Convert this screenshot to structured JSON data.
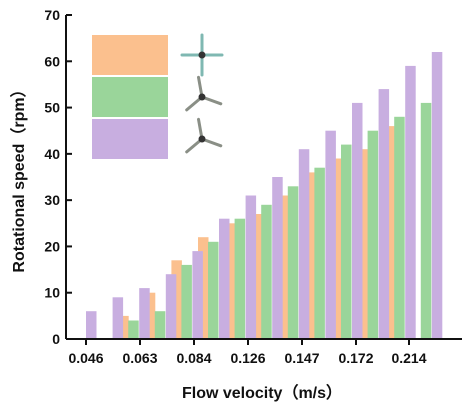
{
  "chart_data": {
    "type": "bar",
    "title": "",
    "xlabel": "Flow velocity（m/s）",
    "ylabel": "Rotational speed（rpm）",
    "ylim": [
      0,
      70
    ],
    "yticks": [
      0,
      10,
      20,
      30,
      40,
      50,
      60,
      70
    ],
    "grid": false,
    "legend": "top-left",
    "categories_count": 16,
    "x_tick_labels": [
      "0.046",
      "0.063",
      "0.084",
      "0.126",
      "0.147",
      "0.172",
      "0.214"
    ],
    "series": [
      {
        "color": "#fbc08e",
        "values": [
          0,
          0,
          5,
          10,
          17,
          22,
          25,
          27,
          31,
          36,
          39,
          41,
          46,
          0,
          0,
          0
        ]
      },
      {
        "color": "#9ad59a",
        "values": [
          0,
          0,
          4,
          6,
          16,
          21,
          26,
          29,
          33,
          37,
          42,
          45,
          48,
          51,
          0,
          0
        ]
      },
      {
        "color": "#c8aee0",
        "values": [
          6,
          9,
          11,
          14,
          19,
          26,
          31,
          35,
          41,
          45,
          51,
          54,
          59,
          62,
          0,
          0
        ]
      }
    ],
    "legend_icons": [
      "three-blade-turbine-icon",
      "three-blade-turbine-icon",
      "three-blade-turbine-icon"
    ]
  }
}
